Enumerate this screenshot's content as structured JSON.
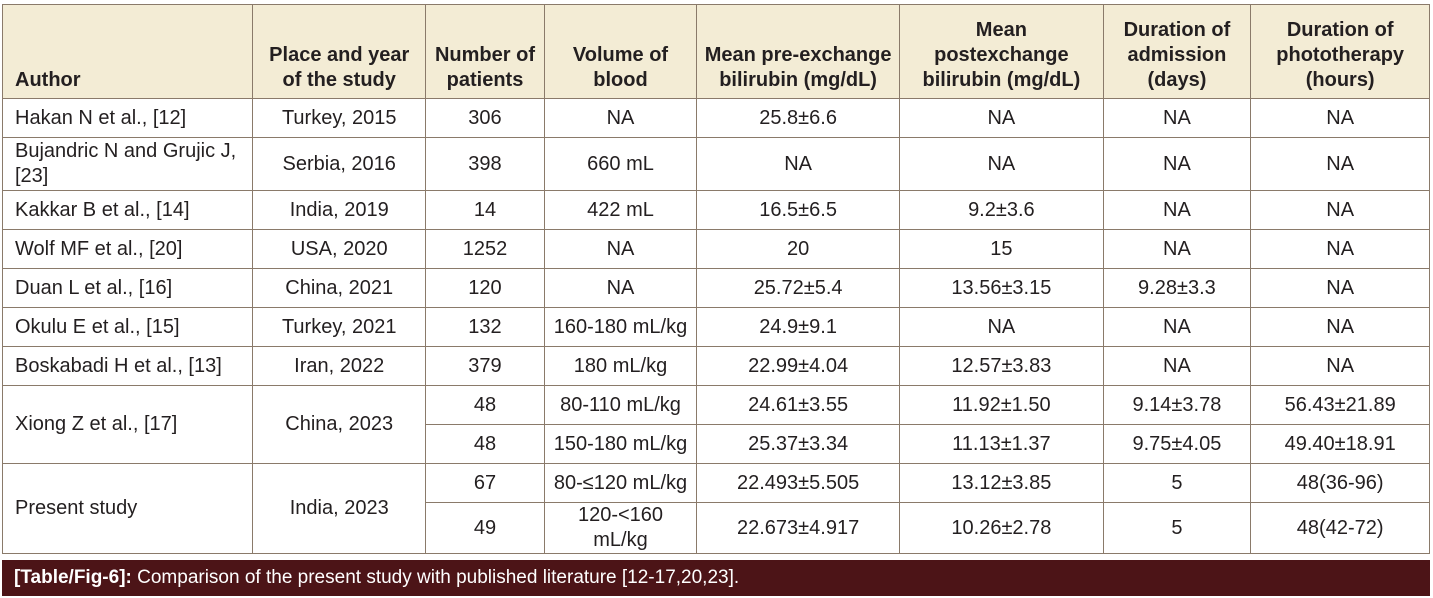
{
  "table": {
    "headers": [
      "Author",
      "Place and year of the study",
      "Number of patients",
      "Volume of blood",
      "Mean pre-exchange bilirubin (mg/dL)",
      "Mean postexchange bilirubin (mg/dL)",
      "Duration of admission (days)",
      "Duration of phototherapy (hours)"
    ],
    "rows": [
      {
        "author": "Hakan N et al., [12]",
        "place": "Turkey, 2015",
        "sub": [
          [
            "306",
            "NA",
            "25.8±6.6",
            "NA",
            "NA",
            "NA"
          ]
        ]
      },
      {
        "author": "Bujandric N and Grujic J, [23]",
        "place": "Serbia, 2016",
        "sub": [
          [
            "398",
            "660 mL",
            "NA",
            "NA",
            "NA",
            "NA"
          ]
        ]
      },
      {
        "author": "Kakkar B et al., [14]",
        "place": "India, 2019",
        "sub": [
          [
            "14",
            "422 mL",
            "16.5±6.5",
            "9.2±3.6",
            "NA",
            "NA"
          ]
        ]
      },
      {
        "author": "Wolf MF et al., [20]",
        "place": "USA, 2020",
        "sub": [
          [
            "1252",
            "NA",
            "20",
            "15",
            "NA",
            "NA"
          ]
        ]
      },
      {
        "author": "Duan L et al., [16]",
        "place": "China, 2021",
        "sub": [
          [
            "120",
            "NA",
            "25.72±5.4",
            "13.56±3.15",
            "9.28±3.3",
            "NA"
          ]
        ]
      },
      {
        "author": "Okulu E et al., [15]",
        "place": "Turkey, 2021",
        "sub": [
          [
            "132",
            "160-180 mL/kg",
            "24.9±9.1",
            "NA",
            "NA",
            "NA"
          ]
        ]
      },
      {
        "author": "Boskabadi H et al., [13]",
        "place": "Iran, 2022",
        "sub": [
          [
            "379",
            "180 mL/kg",
            "22.99±4.04",
            "12.57±3.83",
            "NA",
            "NA"
          ]
        ]
      },
      {
        "author": "Xiong Z et al., [17]",
        "place": "China, 2023",
        "sub": [
          [
            "48",
            "80-110 mL/kg",
            "24.61±3.55",
            "11.92±1.50",
            "9.14±3.78",
            "56.43±21.89"
          ],
          [
            "48",
            "150-180 mL/kg",
            "25.37±3.34",
            "11.13±1.37",
            "9.75±4.05",
            "49.40±18.91"
          ]
        ]
      },
      {
        "author": "Present study",
        "place": "India, 2023",
        "sub": [
          [
            "67",
            "80-≤120 mL/kg",
            "22.493±5.505",
            "13.12±3.85",
            "5",
            "48(36-96)"
          ],
          [
            "49",
            "120-<160 mL/kg",
            "22.673±4.917",
            "10.26±2.78",
            "5",
            "48(42-72)"
          ]
        ]
      }
    ]
  },
  "caption": {
    "label": "[Table/Fig-6]:",
    "text": " Comparison of the present study with published literature [12-17,20,23]."
  },
  "colors": {
    "header_bg": "#f3ecd5",
    "border": "#8a7a6a",
    "caption_bg": "#4c1417",
    "caption_text": "#ffffff"
  }
}
